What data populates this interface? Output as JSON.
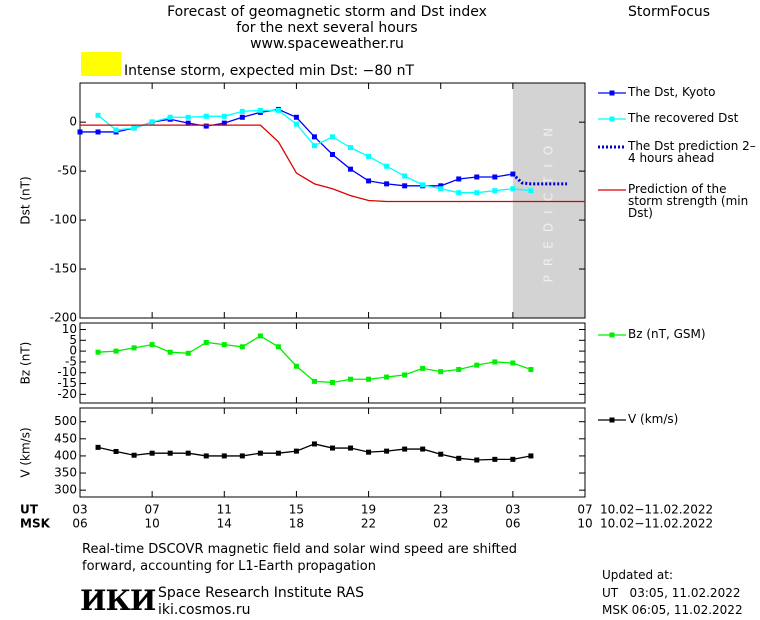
{
  "header": {
    "title_lines": [
      "Forecast of geomagnetic storm and Dst index",
      "for the next several hours",
      "www.spaceweather.ru"
    ],
    "brand": "StormFocus",
    "status_color": "#ffff00",
    "status_text": "Intense storm, expected min Dst: −80 nT"
  },
  "chart_data": [
    {
      "type": "line",
      "ylabel": "Dst (nT)",
      "xlim": [
        0,
        28
      ],
      "ylim": [
        -200,
        40
      ],
      "yticks": [
        0,
        -50,
        -100,
        -150,
        -200
      ],
      "prediction_span": [
        24,
        28
      ],
      "prediction_label": "PREDICTION",
      "series": [
        {
          "name": "The Dst, Kyoto",
          "color": "#0000ff",
          "marker": "square",
          "style": "solid",
          "x": [
            0,
            1,
            2,
            3,
            4,
            5,
            6,
            7,
            8,
            9,
            10,
            11,
            12,
            13,
            14,
            15,
            16,
            17,
            18,
            19,
            20,
            21,
            22,
            23,
            24
          ],
          "values": [
            -10,
            -10,
            -10,
            -6,
            0,
            3,
            -1,
            -4,
            -1,
            5,
            10,
            13,
            5,
            -15,
            -33,
            -48,
            -60,
            -63,
            -65,
            -65,
            -65,
            -58,
            -56,
            -56,
            -53
          ]
        },
        {
          "name": "The recovered Dst",
          "color": "#00ffff",
          "marker": "square",
          "style": "solid",
          "x": [
            1,
            2,
            3,
            4,
            5,
            6,
            7,
            8,
            9,
            10,
            11,
            12,
            13,
            14,
            15,
            16,
            17,
            18,
            19,
            20,
            21,
            22,
            23,
            24,
            25
          ],
          "values": [
            7,
            -8,
            -6,
            0,
            5,
            5,
            6,
            6,
            11,
            12,
            12,
            -2,
            -24,
            -15,
            -26,
            -35,
            -45,
            -55,
            -64,
            -68,
            -72,
            -72,
            -70,
            -68,
            -70
          ]
        },
        {
          "name": "The Dst prediction 2–4 hours ahead",
          "color": "#0000cc",
          "marker": "none",
          "style": "dotted",
          "x": [
            24,
            24.5,
            25,
            26,
            27
          ],
          "values": [
            -53,
            -62,
            -63,
            -63,
            -63
          ]
        },
        {
          "name": "Prediction of the storm strength (min Dst)",
          "color": "#dd0000",
          "marker": "none",
          "style": "solid",
          "x": [
            0,
            10,
            11,
            12,
            13,
            14,
            15,
            16,
            17,
            28
          ],
          "values": [
            -3,
            -3,
            -20,
            -52,
            -63,
            -68,
            -75,
            -80,
            -81,
            -81
          ]
        }
      ]
    },
    {
      "type": "line",
      "ylabel": "Bz (nT)",
      "xlim": [
        0,
        28
      ],
      "ylim": [
        -24,
        13
      ],
      "yticks": [
        10,
        5,
        0,
        -5,
        -10,
        -15,
        -20
      ],
      "series": [
        {
          "name": "Bz (nT, GSM)",
          "color": "#00ee00",
          "marker": "square",
          "style": "solid",
          "x": [
            1,
            2,
            3,
            4,
            5,
            6,
            7,
            8,
            9,
            10,
            11,
            12,
            13,
            14,
            15,
            16,
            17,
            18,
            19,
            20,
            21,
            22,
            23,
            24,
            25
          ],
          "values": [
            -0.5,
            0,
            1.5,
            3,
            -0.5,
            -1,
            4,
            3,
            2,
            7,
            2,
            -7,
            -14,
            -14.5,
            -13,
            -13,
            -12,
            -11,
            -8,
            -9.5,
            -8.5,
            -6.5,
            -5,
            -5.5,
            -8.5
          ]
        }
      ]
    },
    {
      "type": "line",
      "ylabel": "V (km/s)",
      "xlim": [
        0,
        28
      ],
      "ylim": [
        280,
        540
      ],
      "yticks": [
        500,
        450,
        400,
        350,
        300
      ],
      "xtick_row_label": "UT",
      "xticks": [
        {
          "value": 0,
          "label": "03"
        },
        {
          "value": 4,
          "label": "07"
        },
        {
          "value": 8,
          "label": "11"
        },
        {
          "value": 12,
          "label": "15"
        },
        {
          "value": 16,
          "label": "19"
        },
        {
          "value": 20,
          "label": "23"
        },
        {
          "value": 24,
          "label": "03"
        },
        {
          "value": 28,
          "label": "07"
        }
      ],
      "xtick_row2_label": "MSK",
      "xticks2": [
        {
          "value": 0,
          "label": "06"
        },
        {
          "value": 4,
          "label": "10"
        },
        {
          "value": 8,
          "label": "14"
        },
        {
          "value": 12,
          "label": "18"
        },
        {
          "value": 16,
          "label": "22"
        },
        {
          "value": 20,
          "label": "02"
        },
        {
          "value": 24,
          "label": "06"
        },
        {
          "value": 28,
          "label": "10"
        }
      ],
      "date_range_ut": "10.02−11.02.2022",
      "date_range_msk": "10.02−11.02.2022",
      "series": [
        {
          "name": "V (km/s)",
          "color": "#000000",
          "marker": "square",
          "style": "solid",
          "x": [
            1,
            2,
            3,
            4,
            5,
            6,
            7,
            8,
            9,
            10,
            11,
            12,
            13,
            14,
            15,
            16,
            17,
            18,
            19,
            20,
            21,
            22,
            23,
            24,
            25
          ],
          "values": [
            425,
            413,
            402,
            408,
            408,
            408,
            400,
            400,
            400,
            408,
            408,
            414,
            435,
            423,
            423,
            411,
            414,
            420,
            420,
            405,
            393,
            388,
            390,
            390,
            400
          ]
        }
      ]
    }
  ],
  "footer": {
    "note_lines": [
      "Real-time DSCOVR magnetic field and solar wind speed are shifted",
      "forward, accounting for L1-Earth propagation"
    ],
    "logo": "ИКИ",
    "institute": "Space Research Institute RAS",
    "site": "iki.cosmos.ru",
    "updated_title": "Updated at:",
    "updated_ut": "UT   03:05, 11.02.2022",
    "updated_msk": "MSK 06:05, 11.02.2022"
  }
}
